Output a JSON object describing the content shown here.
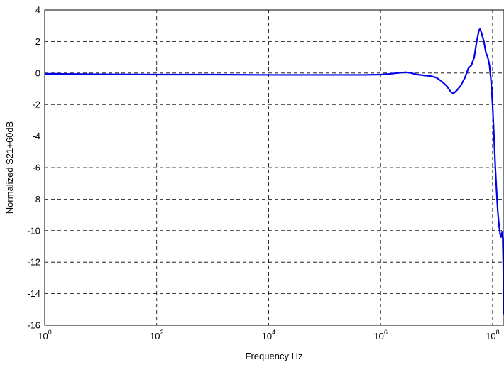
{
  "chart_data": {
    "type": "line",
    "title": "",
    "xlabel": "Frequency Hz",
    "ylabel": "Normalized S21+60dB",
    "xscale": "log",
    "xlim": [
      1,
      160000000
    ],
    "ylim": [
      -16,
      4
    ],
    "grid": true,
    "x_ticks": [
      {
        "value": 1,
        "base": "10",
        "exp": "0"
      },
      {
        "value": 100,
        "base": "10",
        "exp": "2"
      },
      {
        "value": 10000,
        "base": "10",
        "exp": "4"
      },
      {
        "value": 1000000,
        "base": "10",
        "exp": "6"
      },
      {
        "value": 100000000,
        "base": "10",
        "exp": "8"
      }
    ],
    "y_ticks": [
      4,
      2,
      0,
      -2,
      -4,
      -6,
      -8,
      -10,
      -12,
      -14,
      -16
    ],
    "y_tick_labels": [
      "4",
      "2",
      "0",
      "-2",
      "-4",
      "-6",
      "-8",
      "-10",
      "-12",
      "-14",
      "-16"
    ],
    "series": [
      {
        "color": "#0000ee",
        "x": [
          1,
          10,
          100,
          1000,
          10000,
          100000,
          500000,
          1000000,
          1500000,
          2000000,
          2800000,
          3500000,
          4500000,
          6000000,
          8000000,
          10000000,
          12000000,
          15000000,
          18000000,
          20000000,
          23000000,
          27000000,
          32000000,
          37000000,
          42000000,
          47000000,
          52000000,
          57000000,
          60000000,
          64000000,
          70000000,
          76000000,
          82000000,
          88000000,
          94000000,
          100000000,
          106000000,
          112000000,
          118000000,
          124000000,
          130000000,
          136000000,
          142000000,
          148000000,
          152000000,
          155000000,
          158000000,
          160000000
        ],
        "y": [
          -0.05,
          -0.08,
          -0.1,
          -0.1,
          -0.12,
          -0.12,
          -0.12,
          -0.1,
          -0.05,
          0.0,
          0.05,
          0.0,
          -0.1,
          -0.15,
          -0.2,
          -0.3,
          -0.5,
          -0.8,
          -1.2,
          -1.3,
          -1.1,
          -0.8,
          -0.3,
          0.3,
          0.5,
          1.0,
          2.0,
          2.7,
          2.8,
          2.5,
          2.0,
          1.3,
          1.0,
          0.5,
          -0.5,
          -2.0,
          -4.0,
          -6.0,
          -7.5,
          -8.8,
          -9.6,
          -10.2,
          -10.4,
          -10.1,
          -10.5,
          -12.0,
          -14.0,
          -15.3
        ]
      }
    ]
  }
}
